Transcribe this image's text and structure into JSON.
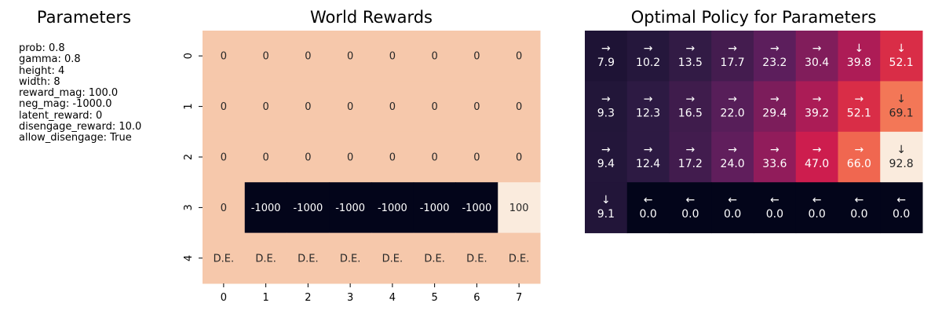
{
  "parameters": {
    "title": "Parameters",
    "items": [
      "prob: 0.8",
      "gamma: 0.8",
      "height: 4",
      "width: 8",
      "reward_mag: 100.0",
      "neg_mag: -1000.0",
      "latent_reward: 0",
      "disengage_reward: 10.0",
      "allow_disengage: True"
    ]
  },
  "chart_data": [
    {
      "type": "heatmap",
      "title": "World Rewards",
      "x_ticks": [
        "0",
        "1",
        "2",
        "3",
        "4",
        "5",
        "6",
        "7"
      ],
      "y_ticks": [
        "0",
        "1",
        "2",
        "3",
        "4"
      ],
      "cells": [
        [
          "0",
          "0",
          "0",
          "0",
          "0",
          "0",
          "0",
          "0"
        ],
        [
          "0",
          "0",
          "0",
          "0",
          "0",
          "0",
          "0",
          "0"
        ],
        [
          "0",
          "0",
          "0",
          "0",
          "0",
          "0",
          "0",
          "0"
        ],
        [
          "0",
          "-1000",
          "-1000",
          "-1000",
          "-1000",
          "-1000",
          "-1000",
          "100"
        ],
        [
          "D.E.",
          "D.E.",
          "D.E.",
          "D.E.",
          "D.E.",
          "D.E.",
          "D.E.",
          "D.E."
        ]
      ],
      "colors": {
        "zero": "#f6c8ab",
        "negative": "#03051a",
        "positive": "#faebdd"
      },
      "text_colors": {
        "light_bg": "#262626",
        "dark_bg": "#ffffff"
      }
    },
    {
      "type": "heatmap",
      "title": "Optimal Policy for Parameters",
      "arrows": [
        [
          "→",
          "→",
          "→",
          "→",
          "→",
          "→",
          "↓",
          "↓"
        ],
        [
          "→",
          "→",
          "→",
          "→",
          "→",
          "→",
          "→",
          "↓"
        ],
        [
          "→",
          "→",
          "→",
          "→",
          "→",
          "→",
          "→",
          "↓"
        ],
        [
          "↓",
          "←",
          "←",
          "←",
          "←",
          "←",
          "←",
          "←"
        ]
      ],
      "values": [
        [
          7.9,
          10.2,
          13.5,
          17.7,
          23.2,
          30.4,
          39.8,
          52.1
        ],
        [
          9.3,
          12.3,
          16.5,
          22.0,
          29.4,
          39.2,
          52.1,
          69.1
        ],
        [
          9.4,
          12.4,
          17.2,
          24.0,
          33.6,
          47.0,
          66.0,
          92.8
        ],
        [
          9.1,
          0.0,
          0.0,
          0.0,
          0.0,
          0.0,
          0.0,
          0.0
        ]
      ],
      "value_range": [
        0,
        92.8
      ],
      "colormap": [
        "#03051a",
        "#2a1a41",
        "#5c1e5c",
        "#971c5b",
        "#cb1b4f",
        "#e83f3f",
        "#f47958",
        "#f6a882",
        "#faebdd"
      ]
    }
  ]
}
